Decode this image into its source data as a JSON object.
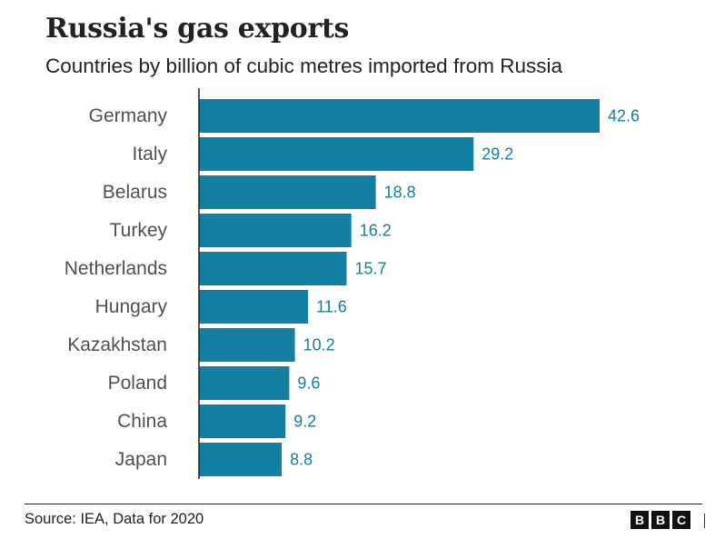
{
  "chart_data": {
    "type": "bar",
    "orientation": "horizontal",
    "title": "Russia's gas exports",
    "subtitle": "Countries by billion of cubic metres imported from Russia",
    "categories": [
      "Germany",
      "Italy",
      "Belarus",
      "Turkey",
      "Netherlands",
      "Hungary",
      "Kazakhstan",
      "Poland",
      "China",
      "Japan"
    ],
    "values": [
      42.6,
      29.2,
      18.8,
      16.2,
      15.7,
      11.6,
      10.2,
      9.6,
      9.2,
      8.8
    ],
    "value_labels": [
      "42.6",
      "29.2",
      "18.8",
      "16.2",
      "15.7",
      "11.6",
      "10.2",
      "9.6",
      "9.2",
      "8.8"
    ],
    "xlim": [
      0,
      42.6
    ],
    "grid": false,
    "data_labels": true
  },
  "footer": {
    "source": "Source: IEA, Data for 2020",
    "logo_letters": [
      "B",
      "B",
      "C"
    ]
  },
  "colors": {
    "bar": "#1380A1",
    "value_label": "#1380A1",
    "axis": "#222222"
  }
}
